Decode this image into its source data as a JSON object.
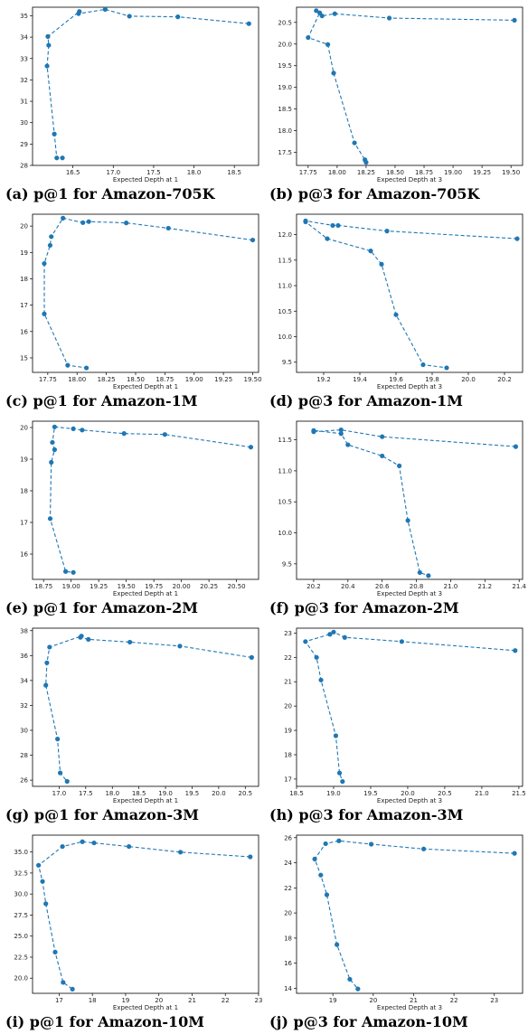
{
  "chart_data": [
    {
      "type": "line",
      "caption": "(a) p@1 for Amazon-705K",
      "xlabel": "Expected Depth at 1",
      "ylabel": "",
      "xlim": [
        16.0,
        18.8
      ],
      "ylim": [
        28.0,
        35.4
      ],
      "xticks": [
        "16.5",
        "17.0",
        "17.5",
        "18.0",
        "18.5"
      ],
      "yticks": [
        "28",
        "29",
        "30",
        "31",
        "32",
        "33",
        "34",
        "35"
      ],
      "series": [
        {
          "color": "#1f77b4",
          "x": [
            18.68,
            17.8,
            17.2,
            16.9,
            16.57,
            16.58,
            16.19,
            16.2,
            16.18,
            16.27,
            16.3,
            16.37
          ],
          "y": [
            34.63,
            34.95,
            34.98,
            35.3,
            35.1,
            35.2,
            34.03,
            33.62,
            32.65,
            29.47,
            28.35,
            28.35
          ]
        }
      ]
    },
    {
      "type": "line",
      "caption": "(b) p@3 for Amazon-705K",
      "xlabel": "Expected Depth at 3",
      "ylabel": "",
      "xlim": [
        17.65,
        19.6
      ],
      "ylim": [
        17.2,
        20.85
      ],
      "xticks": [
        "17.75",
        "18.00",
        "18.25",
        "18.50",
        "18.75",
        "19.00",
        "19.25",
        "19.50"
      ],
      "yticks": [
        "17.5",
        "18.0",
        "18.5",
        "19.0",
        "19.5",
        "20.0",
        "20.5"
      ],
      "series": [
        {
          "color": "#1f77b4",
          "x": [
            19.53,
            18.45,
            17.98,
            17.87,
            17.82,
            17.85,
            17.75,
            17.92,
            17.97,
            18.15,
            18.24,
            18.25
          ],
          "y": [
            20.55,
            20.6,
            20.7,
            20.65,
            20.77,
            20.72,
            20.15,
            19.99,
            19.33,
            17.72,
            17.33,
            17.27
          ]
        }
      ]
    },
    {
      "type": "line",
      "caption": "(c) p@1 for Amazon-1M",
      "xlabel": "Expected Depth at 1",
      "ylabel": "",
      "xlim": [
        17.62,
        19.55
      ],
      "ylim": [
        14.45,
        20.45
      ],
      "xticks": [
        "17.75",
        "18.00",
        "18.25",
        "18.50",
        "18.75",
        "19.00",
        "19.25",
        "19.50"
      ],
      "yticks": [
        "15",
        "16",
        "17",
        "18",
        "19",
        "20"
      ],
      "series": [
        {
          "color": "#1f77b4",
          "x": [
            19.5,
            18.78,
            18.42,
            18.1,
            18.05,
            17.88,
            17.78,
            17.77,
            17.72,
            17.72,
            17.92,
            18.08
          ],
          "y": [
            19.47,
            19.92,
            20.12,
            20.17,
            20.13,
            20.3,
            19.6,
            19.27,
            18.58,
            16.67,
            14.72,
            14.62
          ]
        }
      ]
    },
    {
      "type": "line",
      "caption": "(d) p@3 for Amazon-1M",
      "xlabel": "Expected Depth at 3",
      "ylabel": "",
      "xlim": [
        19.05,
        20.3
      ],
      "ylim": [
        9.3,
        12.4
      ],
      "xticks": [
        "19.2",
        "19.4",
        "19.6",
        "19.8",
        "20.0",
        "20.2"
      ],
      "yticks": [
        "9.5",
        "10.0",
        "10.5",
        "11.0",
        "11.5",
        "12.0"
      ],
      "series": [
        {
          "color": "#1f77b4",
          "x": [
            20.27,
            19.55,
            19.28,
            19.25,
            19.1,
            19.1,
            19.22,
            19.46,
            19.52,
            19.6,
            19.75,
            19.88
          ],
          "y": [
            11.92,
            12.07,
            12.18,
            12.18,
            12.27,
            12.25,
            11.92,
            11.68,
            11.42,
            10.43,
            9.45,
            9.39
          ]
        }
      ]
    },
    {
      "type": "line",
      "caption": "(e) p@1 for Amazon-2M",
      "xlabel": "Expected Depth at 1",
      "ylabel": "",
      "xlim": [
        18.65,
        20.7
      ],
      "ylim": [
        15.2,
        20.2
      ],
      "xticks": [
        "18.75",
        "19.00",
        "19.25",
        "19.50",
        "19.75",
        "20.00",
        "20.25",
        "20.50"
      ],
      "yticks": [
        "16",
        "17",
        "18",
        "19",
        "20"
      ],
      "series": [
        {
          "color": "#1f77b4",
          "x": [
            20.63,
            19.85,
            19.48,
            19.1,
            19.02,
            18.85,
            18.83,
            18.85,
            18.82,
            18.81,
            18.95,
            19.02
          ],
          "y": [
            19.38,
            19.78,
            19.81,
            19.92,
            19.96,
            20.02,
            19.53,
            19.3,
            18.9,
            17.12,
            15.45,
            15.42
          ]
        }
      ]
    },
    {
      "type": "line",
      "caption": "(f) p@3 for Amazon-2M",
      "xlabel": "Expected Depth at 3",
      "ylabel": "",
      "xlim": [
        20.1,
        21.42
      ],
      "ylim": [
        9.25,
        11.8
      ],
      "xticks": [
        "20.2",
        "20.4",
        "20.6",
        "20.8",
        "21.0",
        "21.2",
        "21.4"
      ],
      "yticks": [
        "9.5",
        "10.0",
        "10.5",
        "11.0",
        "11.5"
      ],
      "series": [
        {
          "color": "#1f77b4",
          "x": [
            21.38,
            20.6,
            20.36,
            20.2,
            20.2,
            20.36,
            20.4,
            20.6,
            20.7,
            20.75,
            20.82,
            20.87
          ],
          "y": [
            11.39,
            11.55,
            11.66,
            11.63,
            11.65,
            11.6,
            11.42,
            11.24,
            11.08,
            10.2,
            9.36,
            9.31
          ]
        }
      ]
    },
    {
      "type": "line",
      "caption": "(g) p@1 for Amazon-3M",
      "xlabel": "Expected Depth at 1",
      "ylabel": "",
      "xlim": [
        16.5,
        20.75
      ],
      "ylim": [
        25.5,
        38.2
      ],
      "xticks": [
        "17.0",
        "17.5",
        "18.0",
        "18.5",
        "19.0",
        "19.5",
        "20.0",
        "20.5"
      ],
      "yticks": [
        "26",
        "28",
        "30",
        "32",
        "34",
        "36",
        "38"
      ],
      "series": [
        {
          "color": "#1f77b4",
          "x": [
            20.62,
            19.27,
            18.33,
            17.55,
            17.4,
            17.42,
            16.82,
            16.77,
            16.75,
            16.97,
            17.02,
            17.15
          ],
          "y": [
            35.85,
            36.76,
            37.08,
            37.3,
            37.46,
            37.57,
            36.68,
            35.42,
            33.62,
            29.3,
            26.58,
            25.9
          ]
        }
      ]
    },
    {
      "type": "line",
      "caption": "(h) p@3 for Amazon-3M",
      "xlabel": "Expected Depth at 3",
      "ylabel": "",
      "xlim": [
        18.5,
        21.55
      ],
      "ylim": [
        16.7,
        23.2
      ],
      "xticks": [
        "18.5",
        "19.0",
        "19.5",
        "20.0",
        "20.5",
        "21.0",
        "21.5"
      ],
      "yticks": [
        "17",
        "18",
        "19",
        "20",
        "21",
        "22",
        "23"
      ],
      "series": [
        {
          "color": "#1f77b4",
          "x": [
            21.45,
            19.92,
            19.15,
            19.0,
            18.95,
            18.62,
            18.77,
            18.83,
            19.03,
            19.08,
            19.12
          ],
          "y": [
            22.28,
            22.65,
            22.82,
            23.04,
            22.95,
            22.65,
            22.0,
            21.07,
            18.78,
            17.25,
            16.9
          ]
        }
      ]
    },
    {
      "type": "line",
      "caption": "(i) p@1 for Amazon-10M",
      "xlabel": "Expected Depth at 1",
      "ylabel": "",
      "xlim": [
        16.2,
        23.0
      ],
      "ylim": [
        18.2,
        37.0
      ],
      "xticks": [
        "17",
        "18",
        "19",
        "20",
        "21",
        "22",
        "23"
      ],
      "yticks": [
        "20.0",
        "22.5",
        "25.0",
        "27.5",
        "30.0",
        "32.5",
        "35.0"
      ],
      "series": [
        {
          "color": "#1f77b4",
          "x": [
            22.75,
            20.65,
            19.1,
            18.05,
            17.7,
            17.1,
            16.38,
            16.5,
            16.6,
            16.88,
            17.12,
            17.4
          ],
          "y": [
            34.42,
            34.98,
            35.65,
            36.08,
            36.22,
            35.65,
            33.42,
            31.5,
            28.85,
            23.1,
            19.5,
            18.7
          ]
        }
      ]
    },
    {
      "type": "line",
      "caption": "(j) p@3 for Amazon-10M",
      "xlabel": "Expected Depth at 3",
      "ylabel": "",
      "xlim": [
        18.1,
        23.7
      ],
      "ylim": [
        13.6,
        26.2
      ],
      "xticks": [
        "19",
        "20",
        "21",
        "22",
        "23"
      ],
      "yticks": [
        "14",
        "16",
        "18",
        "20",
        "22",
        "24",
        "26"
      ],
      "series": [
        {
          "color": "#1f77b4",
          "x": [
            23.5,
            21.25,
            19.95,
            19.15,
            18.82,
            18.55,
            18.7,
            18.85,
            19.1,
            19.42,
            19.62
          ],
          "y": [
            24.75,
            25.1,
            25.48,
            25.75,
            25.52,
            24.3,
            23.02,
            21.45,
            17.48,
            14.72,
            13.95
          ]
        }
      ]
    }
  ]
}
